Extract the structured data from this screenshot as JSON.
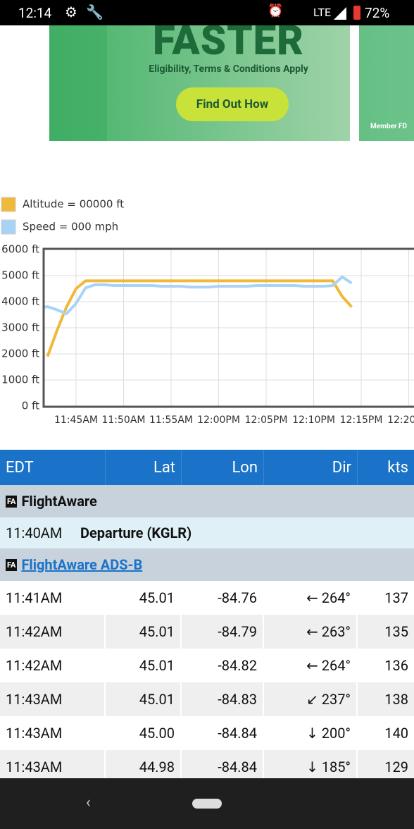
{
  "status_bar": {
    "time": "12:14",
    "network": "LTE",
    "battery": "72%"
  },
  "ad": {
    "headline": "FASTER",
    "subtitle": "Eligibility, Terms & Conditions Apply",
    "button": "Find Out How",
    "footnote": "Member FD"
  },
  "chart_data": {
    "type": "line",
    "x": [
      "11:41",
      "11:42",
      "11:43",
      "11:44",
      "11:45",
      "11:46",
      "11:47",
      "11:48",
      "11:49",
      "11:50",
      "11:51",
      "11:52",
      "11:53",
      "11:54",
      "11:55",
      "11:56",
      "11:57",
      "11:58",
      "11:59",
      "12:00",
      "12:01",
      "12:02",
      "12:03",
      "12:04",
      "12:05",
      "12:06",
      "12:07",
      "12:08",
      "12:09",
      "12:10",
      "12:11",
      "12:12",
      "12:13",
      "12:14"
    ],
    "series": [
      {
        "name": "Altitude = 00000 ft",
        "color": "#f0b93a",
        "values": [
          null,
          1900,
          2900,
          3800,
          4500,
          4800,
          4800,
          4800,
          4800,
          4800,
          4800,
          4800,
          4800,
          4800,
          4800,
          4800,
          4800,
          4800,
          4800,
          4800,
          4800,
          4800,
          4800,
          4800,
          4800,
          4800,
          4800,
          4800,
          4800,
          4800,
          4800,
          4800,
          4200,
          3800
        ]
      },
      {
        "name": "Speed = 000 mph",
        "color": "#a9d3f5",
        "axis": "y2",
        "values": [
          125,
          127,
          123,
          118,
          131,
          151,
          155,
          155,
          154,
          154,
          154,
          154,
          154,
          153,
          153,
          153,
          152,
          152,
          152,
          153,
          153,
          153,
          153,
          154,
          154,
          154,
          154,
          154,
          153,
          153,
          153,
          154,
          165,
          157
        ]
      }
    ],
    "xlim": [
      "11:41",
      "12:21"
    ],
    "xticks": [
      {
        "value": "11:45",
        "label": "11:45AM"
      },
      {
        "value": "11:50",
        "label": "11:50AM"
      },
      {
        "value": "11:55",
        "label": "11:55AM"
      },
      {
        "value": "12:00",
        "label": "12:00PM"
      },
      {
        "value": "12:05",
        "label": "12:05PM"
      },
      {
        "value": "12:10",
        "label": "12:10PM"
      },
      {
        "value": "12:15",
        "label": "12:15PM"
      },
      {
        "value": "12:20",
        "label": "12:20PM"
      }
    ],
    "ylim": [
      0,
      6000
    ],
    "yticks": [
      {
        "value": 0,
        "label": "0 ft"
      },
      {
        "value": 1000,
        "label": "1000 ft"
      },
      {
        "value": 2000,
        "label": "2000 ft"
      },
      {
        "value": 3000,
        "label": "3000 ft"
      },
      {
        "value": 4000,
        "label": "4000 ft"
      },
      {
        "value": 5000,
        "label": "5000 ft"
      },
      {
        "value": 6000,
        "label": "6000 ft"
      }
    ],
    "y2lim": [
      0,
      200
    ],
    "grid": true
  },
  "table": {
    "columns": [
      "EDT",
      "Lat",
      "Lon",
      "Dir",
      "kts"
    ],
    "sections": [
      {
        "logo": "FA",
        "source": "FlightAware",
        "event": [
          "11:40AM",
          "Departure (KGLR)"
        ]
      },
      {
        "logo": "FA",
        "source": "FlightAware ADS-B",
        "rows": [
          [
            "11:41AM",
            "45.01",
            "-84.76",
            "← 264°",
            "137"
          ],
          [
            "11:42AM",
            "45.01",
            "-84.79",
            "← 263°",
            "135"
          ],
          [
            "11:42AM",
            "45.01",
            "-84.82",
            "← 264°",
            "136"
          ],
          [
            "11:43AM",
            "45.01",
            "-84.83",
            "↙ 237°",
            "138"
          ],
          [
            "11:43AM",
            "45.00",
            "-84.84",
            "↓ 200°",
            "140"
          ],
          [
            "11:43AM",
            "44.98",
            "-84.84",
            "↓ 185°",
            "129"
          ]
        ]
      }
    ]
  }
}
